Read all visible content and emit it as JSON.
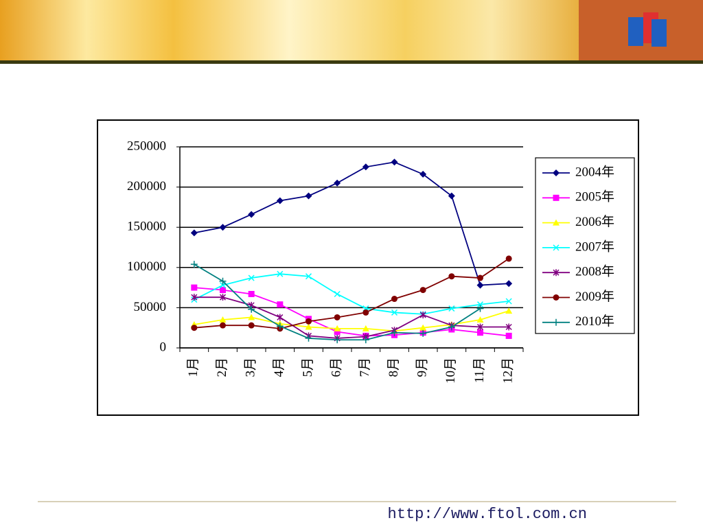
{
  "chart_data": {
    "type": "line",
    "categories": [
      "1月",
      "2月",
      "3月",
      "4月",
      "5月",
      "6月",
      "7月",
      "8月",
      "9月",
      "10月",
      "11月",
      "12月"
    ],
    "series": [
      {
        "name": "2004年",
        "color": "#000080",
        "marker": "diamond",
        "values": [
          143000,
          150000,
          166000,
          183000,
          189000,
          205000,
          225000,
          231000,
          216000,
          189000,
          78000,
          80000
        ]
      },
      {
        "name": "2005年",
        "color": "#ff00ff",
        "marker": "square",
        "values": [
          75000,
          72000,
          67000,
          54000,
          36000,
          20000,
          15000,
          16000,
          19000,
          23000,
          19000,
          15000
        ]
      },
      {
        "name": "2006年",
        "color": "#ffff00",
        "marker": "triangle",
        "values": [
          29000,
          35000,
          38000,
          30000,
          26000,
          24000,
          24000,
          21000,
          25000,
          29000,
          35000,
          46000
        ]
      },
      {
        "name": "2007年",
        "color": "#00ffff",
        "marker": "x",
        "values": [
          60000,
          78000,
          87000,
          92000,
          89000,
          67000,
          49000,
          44000,
          42000,
          49000,
          54000,
          58000
        ]
      },
      {
        "name": "2008年",
        "color": "#800080",
        "marker": "star",
        "values": [
          63000,
          63000,
          53000,
          38000,
          15000,
          12000,
          14000,
          22000,
          41000,
          28000,
          26000,
          26000
        ]
      },
      {
        "name": "2009年",
        "color": "#800000",
        "marker": "circle",
        "values": [
          25000,
          28000,
          28000,
          24000,
          33000,
          38000,
          44000,
          61000,
          72000,
          89000,
          87000,
          111000
        ]
      },
      {
        "name": "2010年",
        "color": "#008080",
        "marker": "plus",
        "values": [
          104000,
          83000,
          48000,
          27000,
          12000,
          10000,
          10000,
          19000,
          18000,
          26000,
          49000,
          null
        ]
      }
    ],
    "ylim": [
      0,
      250000
    ],
    "yticks": [
      0,
      50000,
      100000,
      150000,
      200000,
      250000
    ],
    "grid": true,
    "legend": "right"
  },
  "footer": {
    "url": "http://www.ftol.com.cn"
  }
}
